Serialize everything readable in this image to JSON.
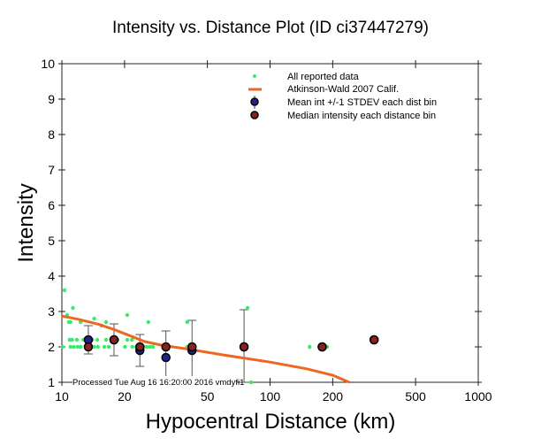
{
  "chart_data": {
    "type": "scatter",
    "title": "Intensity vs. Distance Plot (ID ci37447279)",
    "xlabel": "Hypocentral Distance (km)",
    "ylabel": "Intensity",
    "xscale": "log",
    "xlim": [
      10,
      1000
    ],
    "ylim": [
      1,
      10
    ],
    "xticks": [
      10,
      20,
      50,
      100,
      200,
      500,
      1000
    ],
    "xtick_labels": [
      "10",
      "20",
      "50",
      "100",
      "200",
      "500",
      "1000"
    ],
    "yticks": [
      1,
      2,
      3,
      4,
      5,
      6,
      7,
      8,
      9,
      10
    ],
    "ytick_labels": [
      "1",
      "2",
      "3",
      "4",
      "5",
      "6",
      "7",
      "8",
      "9",
      "10"
    ],
    "legend_position": "top-right",
    "legend": [
      {
        "name": "All reported data",
        "marker": "dot",
        "color": "#33ee66"
      },
      {
        "name": "Atkinson-Wald 2007 Calif.",
        "marker": "line",
        "color": "#ee6622"
      },
      {
        "name": "Mean int +/-1 STDEV each dist bin",
        "marker": "circle-errorbar",
        "color": "#222288"
      },
      {
        "name": "Median intensity each distance bin",
        "marker": "circle",
        "color": "#882222"
      }
    ],
    "series": [
      {
        "name": "All reported data",
        "points": [
          [
            10.3,
            3.6
          ],
          [
            10.6,
            2.9
          ],
          [
            10.8,
            2.7
          ],
          [
            11.3,
            3.1
          ],
          [
            11.0,
            2.7
          ],
          [
            12.3,
            2.7
          ],
          [
            14.3,
            2.8
          ],
          [
            15.5,
            2.6
          ],
          [
            16.3,
            2.7
          ],
          [
            20.6,
            2.9
          ],
          [
            26.0,
            2.7
          ],
          [
            40.0,
            2.7
          ],
          [
            78.0,
            3.1
          ],
          [
            10.1,
            2.0
          ],
          [
            10.9,
            2.2
          ],
          [
            11.2,
            2.2
          ],
          [
            11.8,
            2.2
          ],
          [
            12.7,
            2.2
          ],
          [
            14.0,
            2.2
          ],
          [
            14.8,
            2.2
          ],
          [
            16.3,
            2.2
          ],
          [
            18.5,
            2.2
          ],
          [
            20.6,
            2.2
          ],
          [
            21.7,
            2.2
          ],
          [
            11.0,
            2.0
          ],
          [
            11.4,
            2.0
          ],
          [
            11.9,
            2.0
          ],
          [
            12.3,
            2.0
          ],
          [
            13.0,
            2.0
          ],
          [
            14.3,
            2.0
          ],
          [
            14.9,
            2.0
          ],
          [
            16.0,
            2.0
          ],
          [
            16.8,
            2.0
          ],
          [
            20.1,
            2.0
          ],
          [
            21.8,
            2.0
          ],
          [
            22.8,
            2.0
          ],
          [
            23.4,
            2.0
          ],
          [
            24.0,
            2.0
          ],
          [
            24.7,
            2.0
          ],
          [
            25.6,
            2.0
          ],
          [
            26.5,
            2.0
          ],
          [
            27.4,
            2.0
          ],
          [
            40.0,
            2.0
          ],
          [
            155.0,
            2.0
          ],
          [
            188.0,
            2.0
          ],
          [
            81.0,
            1.0
          ]
        ]
      },
      {
        "name": "Atkinson-Wald 2007 Calif.",
        "points": [
          [
            10,
            2.87
          ],
          [
            12,
            2.78
          ],
          [
            15,
            2.64
          ],
          [
            18,
            2.48
          ],
          [
            22,
            2.28
          ],
          [
            25,
            2.15
          ],
          [
            30,
            2.05
          ],
          [
            35,
            1.99
          ],
          [
            40,
            1.94
          ],
          [
            60,
            1.77
          ],
          [
            100,
            1.57
          ],
          [
            150,
            1.38
          ],
          [
            200,
            1.2
          ],
          [
            240,
            1.0
          ]
        ]
      },
      {
        "name": "Mean int +/-1 STDEV each dist bin",
        "points": [
          {
            "x": 13.4,
            "y": 2.2,
            "ylo": 1.8,
            "yhi": 2.6
          },
          {
            "x": 17.8,
            "y": 2.2,
            "ylo": 1.75,
            "yhi": 2.65
          },
          {
            "x": 23.7,
            "y": 1.9,
            "ylo": 1.45,
            "yhi": 2.35
          },
          {
            "x": 31.6,
            "y": 1.7,
            "ylo": 1.0,
            "yhi": 2.45
          },
          {
            "x": 42.2,
            "y": 1.9,
            "ylo": 1.0,
            "yhi": 2.75
          },
          {
            "x": 75.0,
            "y": 2.0,
            "ylo": 1.0,
            "yhi": 3.05
          },
          {
            "x": 178.0,
            "y": 2.0,
            "ylo": 2.0,
            "yhi": 2.0
          },
          {
            "x": 316.0,
            "y": 2.2,
            "ylo": 2.2,
            "yhi": 2.2
          }
        ]
      },
      {
        "name": "Median intensity each distance bin",
        "points": [
          [
            13.4,
            2.0
          ],
          [
            17.8,
            2.2
          ],
          [
            23.7,
            2.0
          ],
          [
            31.6,
            2.0
          ],
          [
            42.2,
            2.0
          ],
          [
            75.0,
            2.0
          ],
          [
            178.0,
            2.0
          ],
          [
            316.0,
            2.2
          ]
        ]
      }
    ],
    "annotation": "Processed Tue Aug 16 16:20:00 2016 vmdyfi1",
    "grid": false
  }
}
